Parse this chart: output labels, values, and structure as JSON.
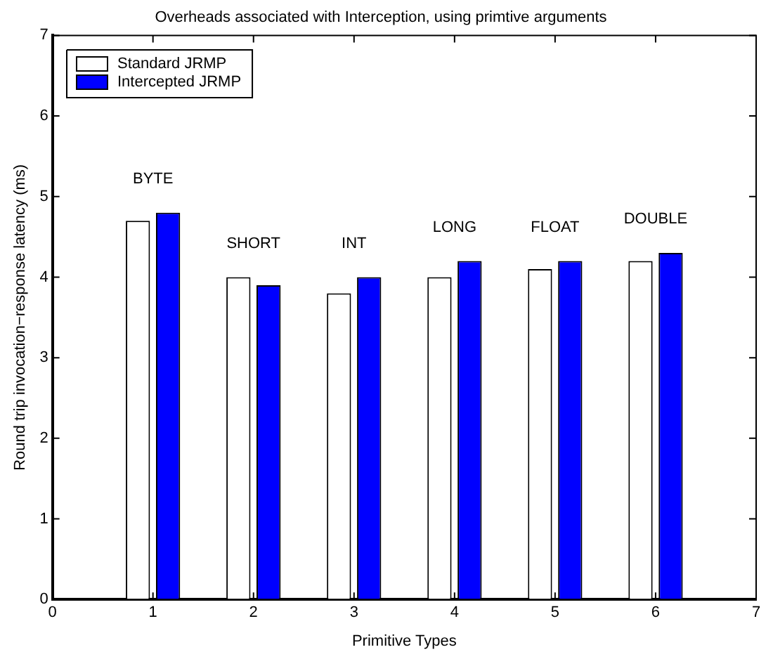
{
  "chart_data": {
    "type": "bar",
    "title": "Overheads associated with Interception, using primtive arguments",
    "xlabel": "Primitive Types",
    "ylabel": "Round trip invocation−response latency (ms)",
    "x": [
      1,
      2,
      3,
      4,
      5,
      6
    ],
    "series": [
      {
        "name": "Standard JRMP",
        "color": "#ffffff",
        "values": [
          4.7,
          4.0,
          3.8,
          4.0,
          4.1,
          4.2
        ]
      },
      {
        "name": "Intercepted JRMP",
        "color": "#0000ff",
        "values": [
          4.8,
          3.9,
          4.0,
          4.2,
          4.2,
          4.3
        ]
      }
    ],
    "xlim": [
      0,
      7
    ],
    "xticks": [
      0,
      1,
      2,
      3,
      4,
      5,
      6,
      7
    ],
    "ylim": [
      0,
      7
    ],
    "yticks": [
      0,
      1,
      2,
      3,
      4,
      5,
      6,
      7
    ],
    "annotations": [
      "BYTE",
      "SHORT",
      "INT",
      "LONG",
      "FLOAT",
      "DOUBLE"
    ],
    "legend": "top left",
    "grid": false
  }
}
